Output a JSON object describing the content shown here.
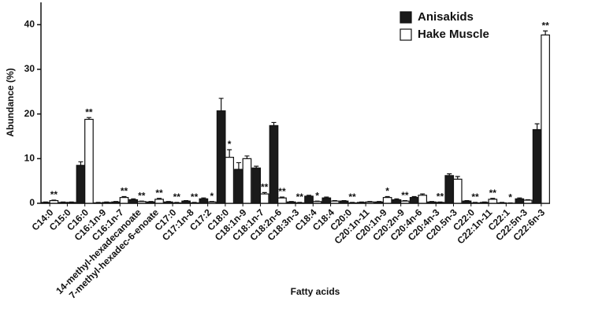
{
  "chart_data": {
    "type": "bar",
    "x_label": "Fatty acids",
    "y_label": "Abundance (%)",
    "categories": [
      "C14:0",
      "C15:0",
      "C16:0",
      "C16:1n-9",
      "C16:1n-7",
      "14-methyl-hexadecanoate",
      "7-methyl-hexadec-6-enoate",
      "C17:0",
      "C17:1n-8",
      "C17:2",
      "C18:0",
      "C18:1n-9",
      "C18:1n-7",
      "C18:2n-6",
      "C18:3n-3",
      "C18:4",
      "C18:4",
      "C20:0",
      "C20:1n-11",
      "C20:1n-9",
      "C20:2n-9",
      "C20:4n-6",
      "C20:4n-3",
      "C20.5n-3",
      "C22:0",
      "C22:1n-11",
      "C22:1",
      "C22:5n-3",
      "C22:6n-3"
    ],
    "series": [
      {
        "name": "Anisakids",
        "color": "#1a1a1a",
        "values": [
          0.2,
          0.2,
          8.5,
          0.1,
          0.3,
          0.8,
          0.3,
          0.3,
          0.5,
          1.0,
          20.7,
          7.6,
          7.9,
          17.4,
          0.3,
          1.6,
          1.2,
          0.5,
          0.2,
          0.3,
          0.8,
          1.3,
          0.3,
          6.2,
          0.5,
          0.2,
          0.1,
          1.0,
          16.5
        ],
        "errors": [
          0.1,
          0.1,
          0.8,
          0.1,
          0.1,
          0.2,
          0.1,
          0.1,
          0.1,
          0.2,
          2.8,
          1.5,
          0.4,
          0.7,
          0.1,
          0.2,
          0.2,
          0.1,
          0.1,
          0.1,
          0.2,
          0.2,
          0.1,
          0.4,
          0.1,
          0.1,
          0.1,
          0.2,
          1.3
        ]
      },
      {
        "name": "Hake Muscle",
        "color": "#ffffff",
        "values": [
          0.6,
          0.2,
          18.8,
          0.2,
          1.3,
          0.4,
          0.9,
          0.1,
          0.1,
          0.3,
          10.3,
          10.0,
          2.1,
          1.2,
          0.1,
          0.4,
          0.5,
          0.1,
          0.3,
          1.3,
          0.5,
          1.8,
          0.2,
          5.4,
          0.1,
          0.9,
          0.0,
          0.7,
          37.7
        ],
        "errors": [
          0.1,
          0.1,
          0.4,
          0.1,
          0.2,
          0.1,
          0.2,
          0.1,
          0.1,
          0.1,
          1.7,
          0.6,
          0.3,
          0.2,
          0.1,
          0.1,
          0.1,
          0.1,
          0.1,
          0.2,
          0.1,
          0.3,
          0.1,
          0.6,
          0.1,
          0.2,
          0.1,
          0.1,
          0.9
        ]
      }
    ],
    "annotations": [
      "**",
      null,
      "**",
      null,
      "**",
      "**",
      "**",
      "**",
      "**",
      "*",
      "*",
      null,
      "**",
      "**",
      "**",
      "*",
      null,
      "**",
      null,
      "*",
      "**",
      null,
      "**",
      null,
      "**",
      "**",
      "*",
      null,
      "**"
    ],
    "ylim": [
      0,
      45
    ],
    "yticks": [
      0,
      10,
      20,
      30,
      40
    ],
    "legend_position": "upper right"
  }
}
